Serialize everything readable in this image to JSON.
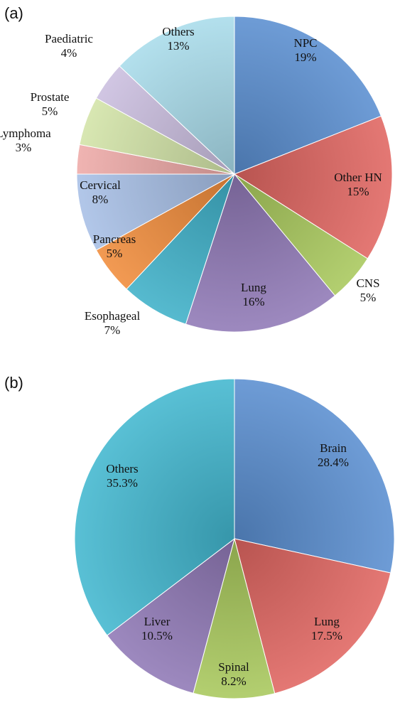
{
  "chart_data": [
    {
      "panel": "(a)",
      "type": "pie",
      "start_angle_deg": 0,
      "direction": "clockwise",
      "slices": [
        {
          "label": "NPC",
          "value": 19,
          "pct_label": "19%",
          "color": "#5a8fd0"
        },
        {
          "label": "Other HN",
          "value": 15,
          "pct_label": "15%",
          "color": "#e06661"
        },
        {
          "label": "CNS",
          "value": 5,
          "pct_label": "5%",
          "color": "#a9c95d"
        },
        {
          "label": "Lung",
          "value": 16,
          "pct_label": "16%",
          "color": "#9079b6"
        },
        {
          "label": "Esophageal",
          "value": 7,
          "pct_label": "7%",
          "color": "#3fb1c9"
        },
        {
          "label": "Pancreas",
          "value": 5,
          "pct_label": "5%",
          "color": "#f08c3c"
        },
        {
          "label": "Cervical",
          "value": 8,
          "pct_label": "8%",
          "color": "#a7bfe6"
        },
        {
          "label": "Lymphoma",
          "value": 3,
          "pct_label": "3%",
          "color": "#eeaaa7"
        },
        {
          "label": "Prostate",
          "value": 5,
          "pct_label": "5%",
          "color": "#d3e4a8"
        },
        {
          "label": "Paediatric",
          "value": 4,
          "pct_label": "4%",
          "color": "#cbbedf"
        },
        {
          "label": "Others",
          "value": 13,
          "pct_label": "13%",
          "color": "#a9dcea"
        }
      ]
    },
    {
      "panel": "(b)",
      "type": "pie",
      "start_angle_deg": 0,
      "direction": "clockwise",
      "slices": [
        {
          "label": "Brain",
          "value": 28.4,
          "pct_label": "28.4%",
          "color": "#5a8fd0"
        },
        {
          "label": "Lung",
          "value": 17.5,
          "pct_label": "17.5%",
          "color": "#e06661"
        },
        {
          "label": "Spinal",
          "value": 8.2,
          "pct_label": "8.2%",
          "color": "#a9c95d"
        },
        {
          "label": "Liver",
          "value": 10.5,
          "pct_label": "10.5%",
          "color": "#9079b6"
        },
        {
          "label": "Others",
          "value": 35.3,
          "pct_label": "35.3%",
          "color": "#42b7cf"
        }
      ]
    }
  ]
}
